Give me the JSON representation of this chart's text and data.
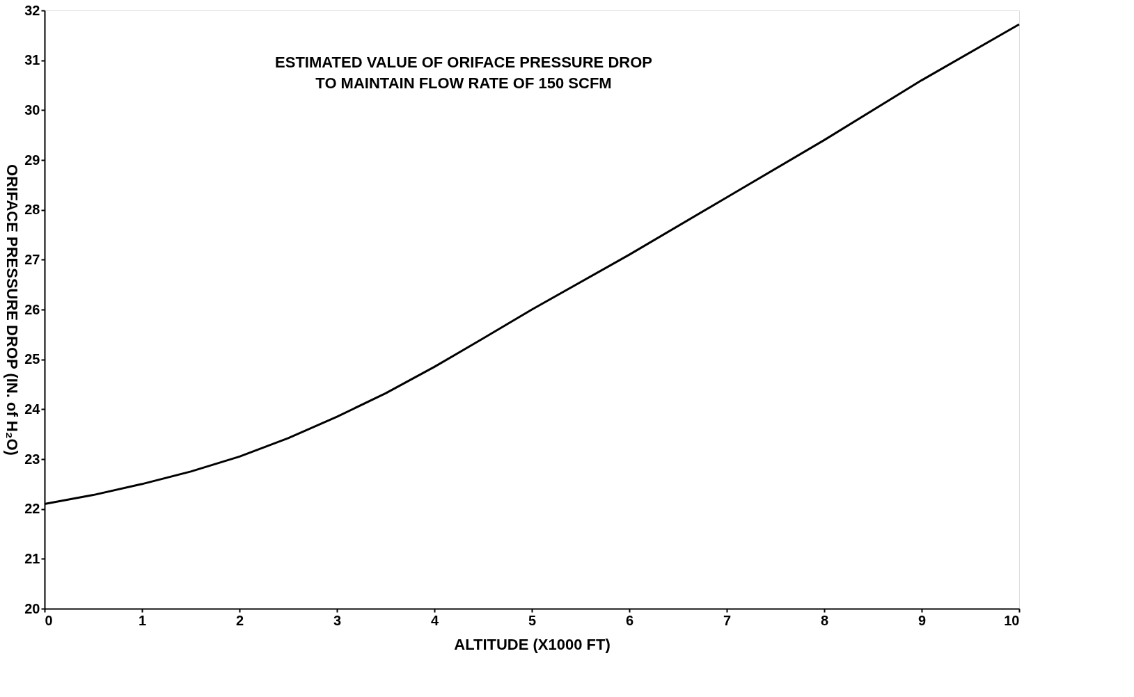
{
  "chart_data": {
    "type": "line",
    "title": "ESTIMATED VALUE OF ORIFACE PRESSURE DROP\nTO MAINTAIN FLOW RATE OF 150 SCFM",
    "xlabel": "ALTITUDE (X1000 FT)",
    "ylabel": "ORIFACE PRESSURE DROP (IN. of H₂O)",
    "x": [
      0,
      0.5,
      1,
      1.5,
      2,
      2.5,
      3,
      3.5,
      4,
      4.5,
      5,
      6,
      7,
      8,
      9,
      10
    ],
    "series": [
      {
        "color": "#000000",
        "values": [
          22.1,
          22.28,
          22.5,
          22.75,
          23.05,
          23.42,
          23.85,
          24.32,
          24.85,
          25.42,
          26.0,
          27.1,
          28.25,
          29.4,
          30.6,
          31.72
        ]
      }
    ],
    "xlim": [
      0,
      10
    ],
    "ylim": [
      20,
      32
    ],
    "xticks": [
      0,
      1,
      2,
      3,
      4,
      5,
      6,
      7,
      8,
      9,
      10
    ],
    "yticks": [
      20,
      21,
      22,
      23,
      24,
      25,
      26,
      27,
      28,
      29,
      30,
      31,
      32
    ],
    "grid": false,
    "marker": "none",
    "line_style": "solid",
    "legend": false
  }
}
